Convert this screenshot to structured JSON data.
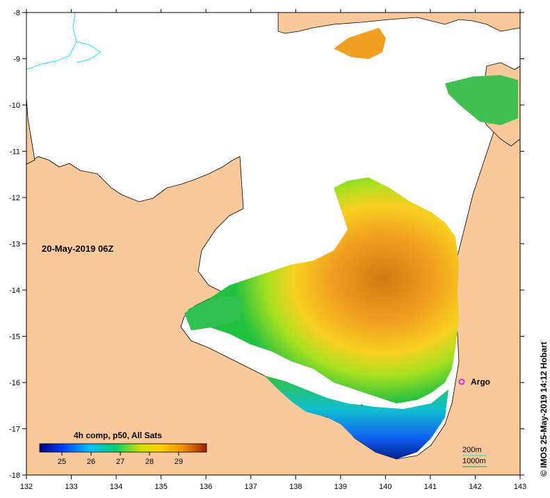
{
  "map": {
    "date_label": "20-May-2019 06Z",
    "marker_label": "Argo",
    "colorbar_title": "4h comp, p50, All Sats",
    "colorbar_ticks": [
      "25",
      "26",
      "27",
      "28",
      "29"
    ],
    "scale_labels": [
      "200m",
      "1000m"
    ],
    "copyright": "© IMOS 25-May-2019 14:12 Hobart",
    "x_ticks": [
      "132",
      "133",
      "134",
      "135",
      "136",
      "137",
      "138",
      "139",
      "140",
      "141",
      "142",
      "143"
    ],
    "y_ticks": [
      "-8",
      "-9",
      "-10",
      "-11",
      "-12",
      "-13",
      "-14",
      "-15",
      "-16",
      "-17",
      "-18"
    ],
    "colors": {
      "land": "#f9c99b",
      "no_data": "#ffffff",
      "marker": "#cc33cc",
      "contour_200m": "#00e5ff",
      "contour_1000m": "#00a060",
      "coast": "#000000"
    },
    "colorbar_stops": [
      "#000080",
      "#0040ff",
      "#00c0ff",
      "#00d070",
      "#c8e000",
      "#ffd000",
      "#f09000",
      "#a02000"
    ]
  }
}
